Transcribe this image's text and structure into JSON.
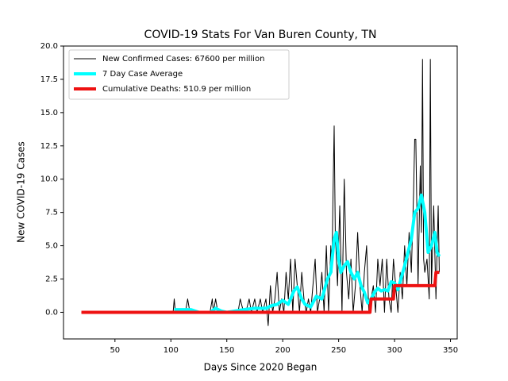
{
  "chart_data": {
    "type": "line",
    "title": "COVID-19 Stats For Van Buren County, TN",
    "x_label": "Days Since 2020 Began",
    "y_label": "New COVID-19 Cases",
    "xlim": [
      4,
      356
    ],
    "ylim": [
      -2,
      20
    ],
    "xticks": [
      50,
      100,
      150,
      200,
      250,
      300,
      350
    ],
    "yticks": [
      {
        "value": 0,
        "label": "0.0"
      },
      {
        "value": 2.5,
        "label": "2.5"
      },
      {
        "value": 5,
        "label": "5.0"
      },
      {
        "value": 7.5,
        "label": "7.5"
      },
      {
        "value": 10,
        "label": "10.0"
      },
      {
        "value": 12.5,
        "label": "12.5"
      },
      {
        "value": 15,
        "label": "15.0"
      },
      {
        "value": 17.5,
        "label": "17.5"
      },
      {
        "value": 20,
        "label": "20.0"
      }
    ],
    "legend": "upper left",
    "series": [
      {
        "name": "New Confirmed Cases: 67600 per million",
        "color": "#000000",
        "width": 1,
        "x": [
          20,
          100,
          102,
          103,
          104,
          113,
          115,
          117,
          135,
          137,
          138,
          140,
          142,
          160,
          162,
          165,
          167,
          170,
          172,
          175,
          177,
          180,
          182,
          185,
          187,
          189,
          191,
          193,
          195,
          197,
          199,
          201,
          203,
          205,
          207,
          209,
          211,
          213,
          215,
          217,
          219,
          221,
          223,
          225,
          227,
          229,
          231,
          233,
          235,
          237,
          239,
          241,
          243,
          244,
          245,
          246,
          247,
          249,
          251,
          253,
          255,
          257,
          259,
          261,
          263,
          265,
          267,
          269,
          271,
          273,
          275,
          277,
          279,
          281,
          283,
          285,
          287,
          289,
          291,
          293,
          295,
          297,
          299,
          301,
          303,
          305,
          307,
          309,
          311,
          313,
          315,
          317,
          318,
          319,
          321,
          323,
          324,
          325,
          326,
          327,
          329,
          331,
          332,
          333,
          335,
          337,
          339,
          340
        ],
        "values": [
          0,
          0,
          0,
          1,
          0,
          0,
          1,
          0,
          0,
          1,
          0,
          1,
          0,
          0,
          1,
          0,
          0,
          1,
          0,
          1,
          0,
          1,
          0,
          1,
          -1,
          2,
          0,
          1,
          3,
          0,
          1,
          0,
          3,
          1,
          4,
          0,
          4,
          2,
          0,
          3,
          1,
          0,
          1,
          0,
          2,
          4,
          0,
          1,
          3,
          0,
          5,
          0,
          5,
          3,
          9,
          14,
          6,
          2,
          8,
          0,
          10,
          3,
          1,
          4,
          0,
          2,
          6,
          2,
          0,
          3,
          5,
          0,
          1,
          2,
          0,
          4,
          2,
          4,
          0,
          4,
          1,
          0,
          4,
          2,
          0,
          3,
          1,
          5,
          2,
          6,
          3,
          9,
          13,
          13,
          2,
          11,
          6,
          19,
          4,
          3,
          4,
          1,
          19,
          2,
          8,
          1,
          8,
          3
        ]
      },
      {
        "name": "7 Day Case Average",
        "color": "#00ffff",
        "width": 4,
        "x": [
          103,
          110,
          118,
          125,
          135,
          140,
          145,
          150,
          165,
          175,
          185,
          190,
          195,
          200,
          205,
          210,
          213,
          217,
          220,
          225,
          230,
          235,
          240,
          243,
          246,
          248,
          250,
          252,
          255,
          258,
          261,
          264,
          267,
          270,
          273,
          276,
          279,
          282,
          285,
          288,
          291,
          294,
          297,
          300,
          303,
          306,
          309,
          312,
          315,
          318,
          321,
          324,
          327,
          330,
          333,
          336,
          338,
          340
        ],
        "values": [
          0.2,
          0.2,
          0.2,
          0,
          0,
          0.3,
          0.1,
          0,
          0.2,
          0.3,
          0.3,
          0.5,
          0.6,
          0.9,
          0.6,
          1.6,
          1.9,
          1,
          0.6,
          0.4,
          1.2,
          1,
          2.5,
          3,
          5.5,
          6,
          4,
          3,
          3.5,
          3.8,
          3,
          2.5,
          3,
          2,
          1.5,
          0.7,
          1,
          1.5,
          1.8,
          1.6,
          1.7,
          1.6,
          2.3,
          2.2,
          1.7,
          2.6,
          3.5,
          4.5,
          5.5,
          7.5,
          7.8,
          8.8,
          7.5,
          4.5,
          5,
          6,
          4.5,
          4.2
        ]
      },
      {
        "name": "Cumulative Deaths: 510.9 per million",
        "color": "#ee1111",
        "width": 4,
        "x": [
          20,
          278,
          279,
          299,
          300,
          336,
          337,
          340
        ],
        "values": [
          0,
          0,
          1,
          1,
          2,
          2,
          3,
          3
        ]
      }
    ]
  }
}
